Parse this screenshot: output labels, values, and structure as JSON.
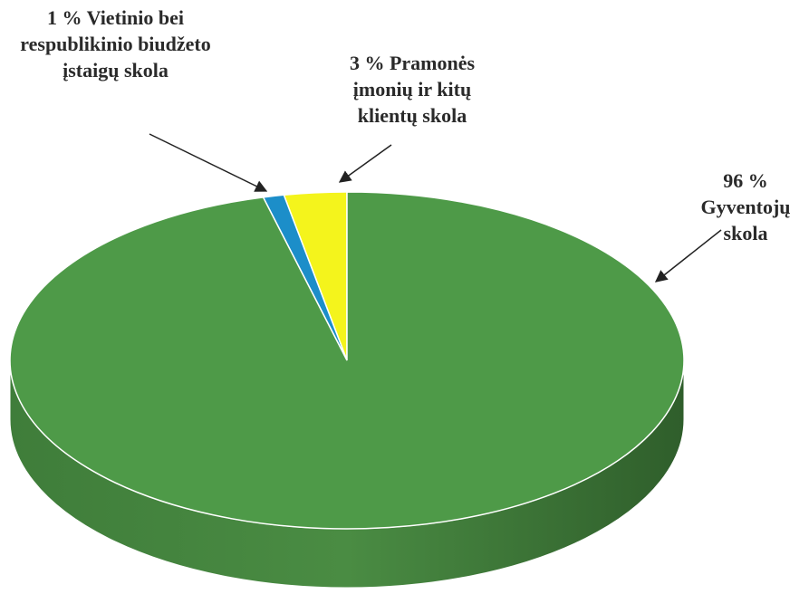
{
  "chart_data": {
    "type": "pie",
    "categories": [
      "Pramonės įmonių ir kitų klientų skola",
      "Vietinio bei respublikinio biudžeto įstaigų skola",
      "Gyventojų skola"
    ],
    "values": [
      3,
      1,
      96
    ],
    "value_labels": [
      "3 %",
      "1 %",
      "96 %"
    ],
    "colors": [
      "#f4f41c",
      "#1c8ec9",
      "#4e9a48"
    ]
  }
}
